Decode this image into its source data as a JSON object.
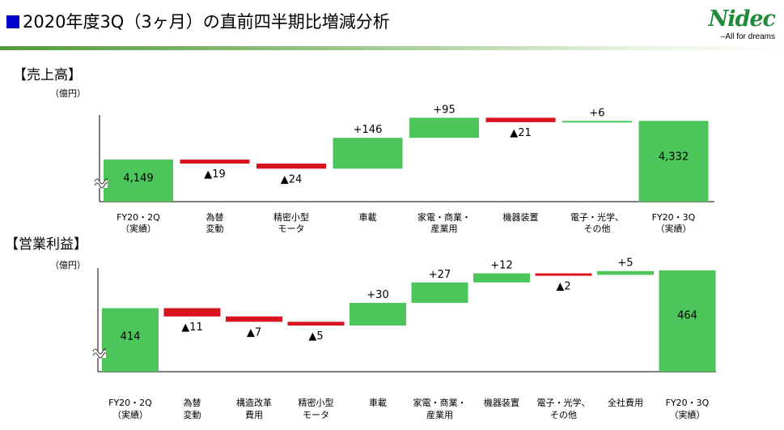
{
  "header": {
    "title": "2020年度3Q（3ヶ月）の直前四半期比増減分析"
  },
  "logo": {
    "wordmark": "Nidec",
    "tagline": "All for dreams"
  },
  "sections": {
    "sales": {
      "title": "【売上高】",
      "unit": "（億円）"
    },
    "operating_profit": {
      "title": "【営業利益】",
      "unit": "（億円）"
    }
  },
  "colors": {
    "increase": "#4cc55a",
    "decrease": "#d9141e",
    "total": "#4cc55a",
    "title_square": "#0000cc"
  },
  "chart_data": [
    {
      "type": "bar",
      "subtype": "waterfall",
      "title": "【売上高】",
      "ylabel": "（億円）",
      "axis_break": true,
      "categories": [
        [
          "FY20・2Q",
          "（実績）"
        ],
        [
          "為替",
          "変動"
        ],
        [
          "精密小型",
          "モータ"
        ],
        [
          "車載"
        ],
        [
          "家電・商業・",
          "産業用"
        ],
        [
          "機器装置"
        ],
        [
          "電子・光学、",
          "その他"
        ],
        [
          "FY20・3Q",
          "（実績）"
        ]
      ],
      "values": [
        4149,
        -19,
        -24,
        146,
        95,
        -21,
        6,
        4332
      ],
      "labels": [
        "4,149",
        "▲19",
        "▲24",
        "+146",
        "+95",
        "▲21",
        "+6",
        "4,332"
      ],
      "kinds": [
        "total",
        "delta",
        "delta",
        "delta",
        "delta",
        "delta",
        "delta",
        "total"
      ],
      "ylim": [
        3950,
        4360
      ]
    },
    {
      "type": "bar",
      "subtype": "waterfall",
      "title": "【営業利益】",
      "ylabel": "（億円）",
      "axis_break": true,
      "categories": [
        [
          "FY20・2Q",
          "（実績）"
        ],
        [
          "為替",
          "変動"
        ],
        [
          "構造改革",
          "費用"
        ],
        [
          "精密小型",
          "モータ"
        ],
        [
          "車載"
        ],
        [
          "家電・商業・",
          "産業用"
        ],
        [
          "機器装置"
        ],
        [
          "電子・光学、",
          "その他"
        ],
        [
          "全社費用"
        ],
        [
          "FY20・3Q",
          "（実績）"
        ]
      ],
      "values": [
        414,
        -11,
        -7,
        -5,
        30,
        27,
        12,
        -2,
        5,
        464
      ],
      "labels": [
        "414",
        "▲11",
        "▲7",
        "▲5",
        "+30",
        "+27",
        "+12",
        "▲2",
        "+5",
        "464"
      ],
      "kinds": [
        "total",
        "delta",
        "delta",
        "delta",
        "delta",
        "delta",
        "delta",
        "delta",
        "delta",
        "total"
      ],
      "ylim": [
        330,
        467
      ]
    }
  ]
}
